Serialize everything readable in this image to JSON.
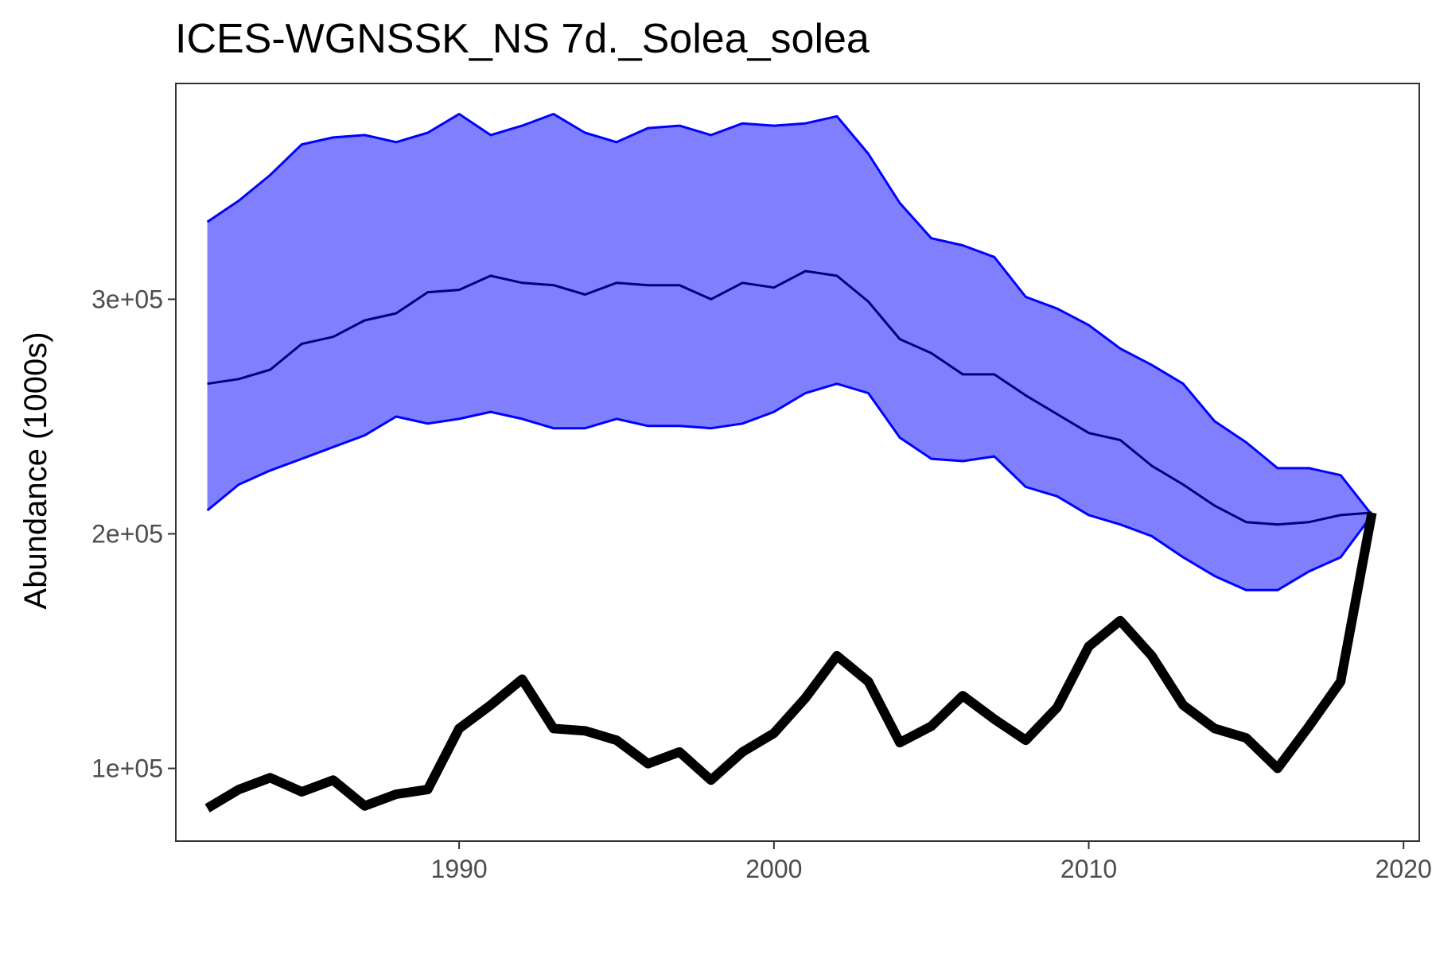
{
  "chart_data": {
    "type": "line",
    "title": "ICES-WGNSSK_NS 7d._Solea_solea",
    "xlabel": "",
    "ylabel": "Abundance (1000s)",
    "xlim": [
      1981,
      2020.5
    ],
    "ylim": [
      69000,
      392000
    ],
    "x_ticks": [
      1990,
      2000,
      2010,
      2020
    ],
    "x_tick_labels": [
      "1990",
      "2000",
      "2010",
      "2020"
    ],
    "y_ticks": [
      100000,
      200000,
      300000
    ],
    "y_tick_labels": [
      "1e+05",
      "2e+05",
      "3e+05"
    ],
    "grid": false,
    "legend": "none",
    "colors": {
      "band_fill": "#8080ff",
      "band_edge": "#0000ff",
      "median_line": "#000080",
      "observed_line": "#000000",
      "panel_border": "#333333",
      "tick_label": "#4d4d4d"
    },
    "x": [
      1982,
      1983,
      1984,
      1985,
      1986,
      1987,
      1988,
      1989,
      1990,
      1991,
      1992,
      1993,
      1994,
      1995,
      1996,
      1997,
      1998,
      1999,
      2000,
      2001,
      2002,
      2003,
      2004,
      2005,
      2006,
      2007,
      2008,
      2009,
      2010,
      2011,
      2012,
      2013,
      2014,
      2015,
      2016,
      2017,
      2018,
      2019
    ],
    "series": [
      {
        "role": "band_upper",
        "values": [
          333000,
          342000,
          353000,
          366000,
          369000,
          370000,
          367000,
          371000,
          379000,
          370000,
          374000,
          379000,
          371000,
          367000,
          373000,
          374000,
          370000,
          375000,
          374000,
          375000,
          378000,
          362000,
          341000,
          326000,
          323000,
          318000,
          301000,
          296000,
          289000,
          279000,
          272000,
          264000,
          248000,
          239000,
          228000,
          228000,
          225000,
          208000
        ]
      },
      {
        "role": "band_lower",
        "values": [
          210000,
          221000,
          227000,
          232000,
          237000,
          242000,
          250000,
          247000,
          249000,
          252000,
          249000,
          245000,
          245000,
          249000,
          246000,
          246000,
          245000,
          247000,
          252000,
          260000,
          264000,
          260000,
          241000,
          232000,
          231000,
          233000,
          220000,
          216000,
          208000,
          204000,
          199000,
          190000,
          182000,
          176000,
          176000,
          184000,
          190000,
          208000
        ]
      },
      {
        "role": "median",
        "values": [
          264000,
          266000,
          270000,
          281000,
          284000,
          291000,
          294000,
          303000,
          304000,
          310000,
          307000,
          306000,
          302000,
          307000,
          306000,
          306000,
          300000,
          307000,
          305000,
          312000,
          310000,
          299000,
          283000,
          277000,
          268000,
          268000,
          259000,
          251000,
          243000,
          240000,
          229000,
          221000,
          212000,
          205000,
          204000,
          205000,
          208000,
          209000
        ]
      },
      {
        "role": "observed",
        "values": [
          83000,
          91000,
          96000,
          90000,
          95000,
          84000,
          89000,
          91000,
          117000,
          127000,
          138000,
          117000,
          116000,
          112000,
          102000,
          107000,
          95000,
          107000,
          115000,
          130000,
          148000,
          137000,
          111000,
          118000,
          131000,
          121000,
          112000,
          126000,
          152000,
          163000,
          148000,
          127000,
          117000,
          113000,
          100000,
          118000,
          137000,
          209000
        ]
      }
    ]
  }
}
